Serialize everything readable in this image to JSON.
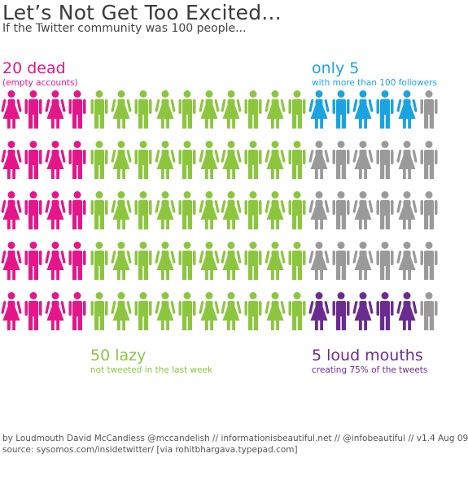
{
  "title": "Let’s Not Get Too Excited...",
  "subtitle": "If the Twitter community was 100 people...",
  "colors": {
    "dead": "#e5168a",
    "lazy": "#8cc63f",
    "followers": "#1aa3e0",
    "loud": "#6a2c91",
    "other": "#9a9a9a"
  },
  "groups": {
    "dead": {
      "headline": "20 dead",
      "detail": "(empty accounts)",
      "count": 20
    },
    "followers": {
      "headline": "only 5",
      "detail": "with more than 100 followers",
      "count": 5
    },
    "lazy": {
      "headline": "50 lazy",
      "detail": "not tweeted in the last week",
      "count": 50
    },
    "loud": {
      "headline": "5 loud mouths",
      "detail": "creating 75% of the tweets",
      "count": 5
    }
  },
  "grid": {
    "rows": 5,
    "columns": 20,
    "cells": [
      [
        "dead",
        "dead",
        "dead",
        "dead",
        "lazy",
        "lazy",
        "lazy",
        "lazy",
        "lazy",
        "lazy",
        "lazy",
        "lazy",
        "lazy",
        "lazy",
        "followers",
        "followers",
        "followers",
        "followers",
        "followers",
        "other"
      ],
      [
        "dead",
        "dead",
        "dead",
        "dead",
        "lazy",
        "lazy",
        "lazy",
        "lazy",
        "lazy",
        "lazy",
        "lazy",
        "lazy",
        "lazy",
        "lazy",
        "other",
        "other",
        "other",
        "other",
        "other",
        "other"
      ],
      [
        "dead",
        "dead",
        "dead",
        "dead",
        "lazy",
        "lazy",
        "lazy",
        "lazy",
        "lazy",
        "lazy",
        "lazy",
        "lazy",
        "lazy",
        "lazy",
        "other",
        "other",
        "other",
        "other",
        "other",
        "other"
      ],
      [
        "dead",
        "dead",
        "dead",
        "dead",
        "lazy",
        "lazy",
        "lazy",
        "lazy",
        "lazy",
        "lazy",
        "lazy",
        "lazy",
        "lazy",
        "lazy",
        "other",
        "other",
        "other",
        "other",
        "other",
        "other"
      ],
      [
        "dead",
        "dead",
        "dead",
        "dead",
        "lazy",
        "lazy",
        "lazy",
        "lazy",
        "lazy",
        "lazy",
        "lazy",
        "lazy",
        "lazy",
        "lazy",
        "loud",
        "loud",
        "loud",
        "loud",
        "loud",
        "other"
      ]
    ],
    "figure_pattern": [
      "female",
      "male",
      "female",
      "male",
      "male",
      "female",
      "male",
      "female",
      "male",
      "female",
      "female",
      "male",
      "female",
      "male",
      "female",
      "male",
      "female",
      "male",
      "female",
      "male"
    ]
  },
  "credits": {
    "line1": "by Loudmouth David McCandless @mccandelish // informationisbeautiful.net //  @infobeautiful // v1.4 Aug 09",
    "line2": "source: sysomos.com/insidetwitter/ [via rohitbhargava.typepad.com]"
  }
}
